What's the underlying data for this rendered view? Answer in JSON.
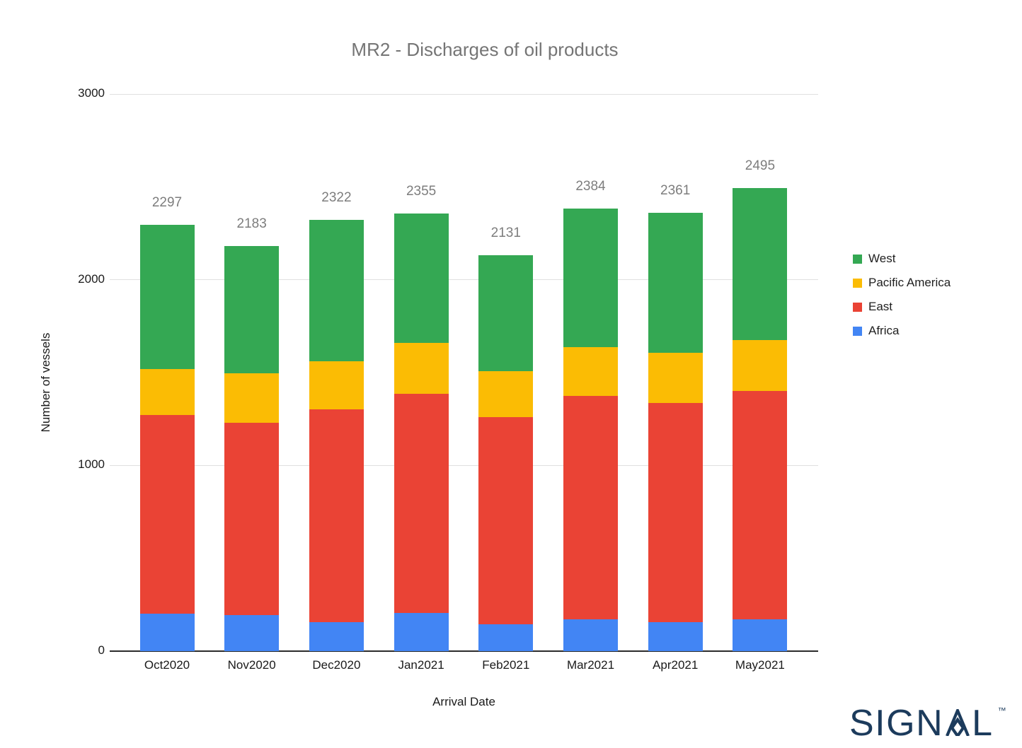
{
  "title": "MR2 - Discharges of oil products",
  "colors": {
    "background": "#ffffff",
    "title_text": "#757575",
    "axis_text": "#1a1a1a",
    "total_label": "#7d7d7d",
    "gridline": "#e0e0e0",
    "baseline": "#2b2b2b",
    "logo": "#1c3b5c"
  },
  "chart_data": {
    "type": "bar",
    "stacked": true,
    "title": "MR2 - Discharges of oil products",
    "xlabel": "Arrival Date",
    "ylabel": "Number of vessels",
    "ylim": [
      0,
      3000
    ],
    "yticks": [
      0,
      1000,
      2000,
      3000
    ],
    "grid": true,
    "categories": [
      "Oct2020",
      "Nov2020",
      "Dec2020",
      "Jan2021",
      "Feb2021",
      "Mar2021",
      "Apr2021",
      "May2021"
    ],
    "series": [
      {
        "name": "Africa",
        "color": "#4285f4",
        "values": [
          200,
          195,
          155,
          205,
          145,
          170,
          155,
          170
        ]
      },
      {
        "name": "East",
        "color": "#ea4335",
        "values": [
          1070,
          1035,
          1148,
          1180,
          1114,
          1206,
          1180,
          1232
        ]
      },
      {
        "name": "Pacific America",
        "color": "#fbbc04",
        "values": [
          250,
          265,
          257,
          273,
          248,
          260,
          273,
          275
        ]
      },
      {
        "name": "West",
        "color": "#34a853",
        "values": [
          777,
          688,
          762,
          697,
          624,
          748,
          753,
          818
        ]
      }
    ],
    "totals": [
      2297,
      2183,
      2322,
      2355,
      2131,
      2384,
      2361,
      2495
    ],
    "legend": {
      "position": "right",
      "items": [
        "West",
        "Pacific America",
        "East",
        "Africa"
      ]
    }
  },
  "logo": {
    "text": "SIGNAL",
    "trademark": "™"
  }
}
